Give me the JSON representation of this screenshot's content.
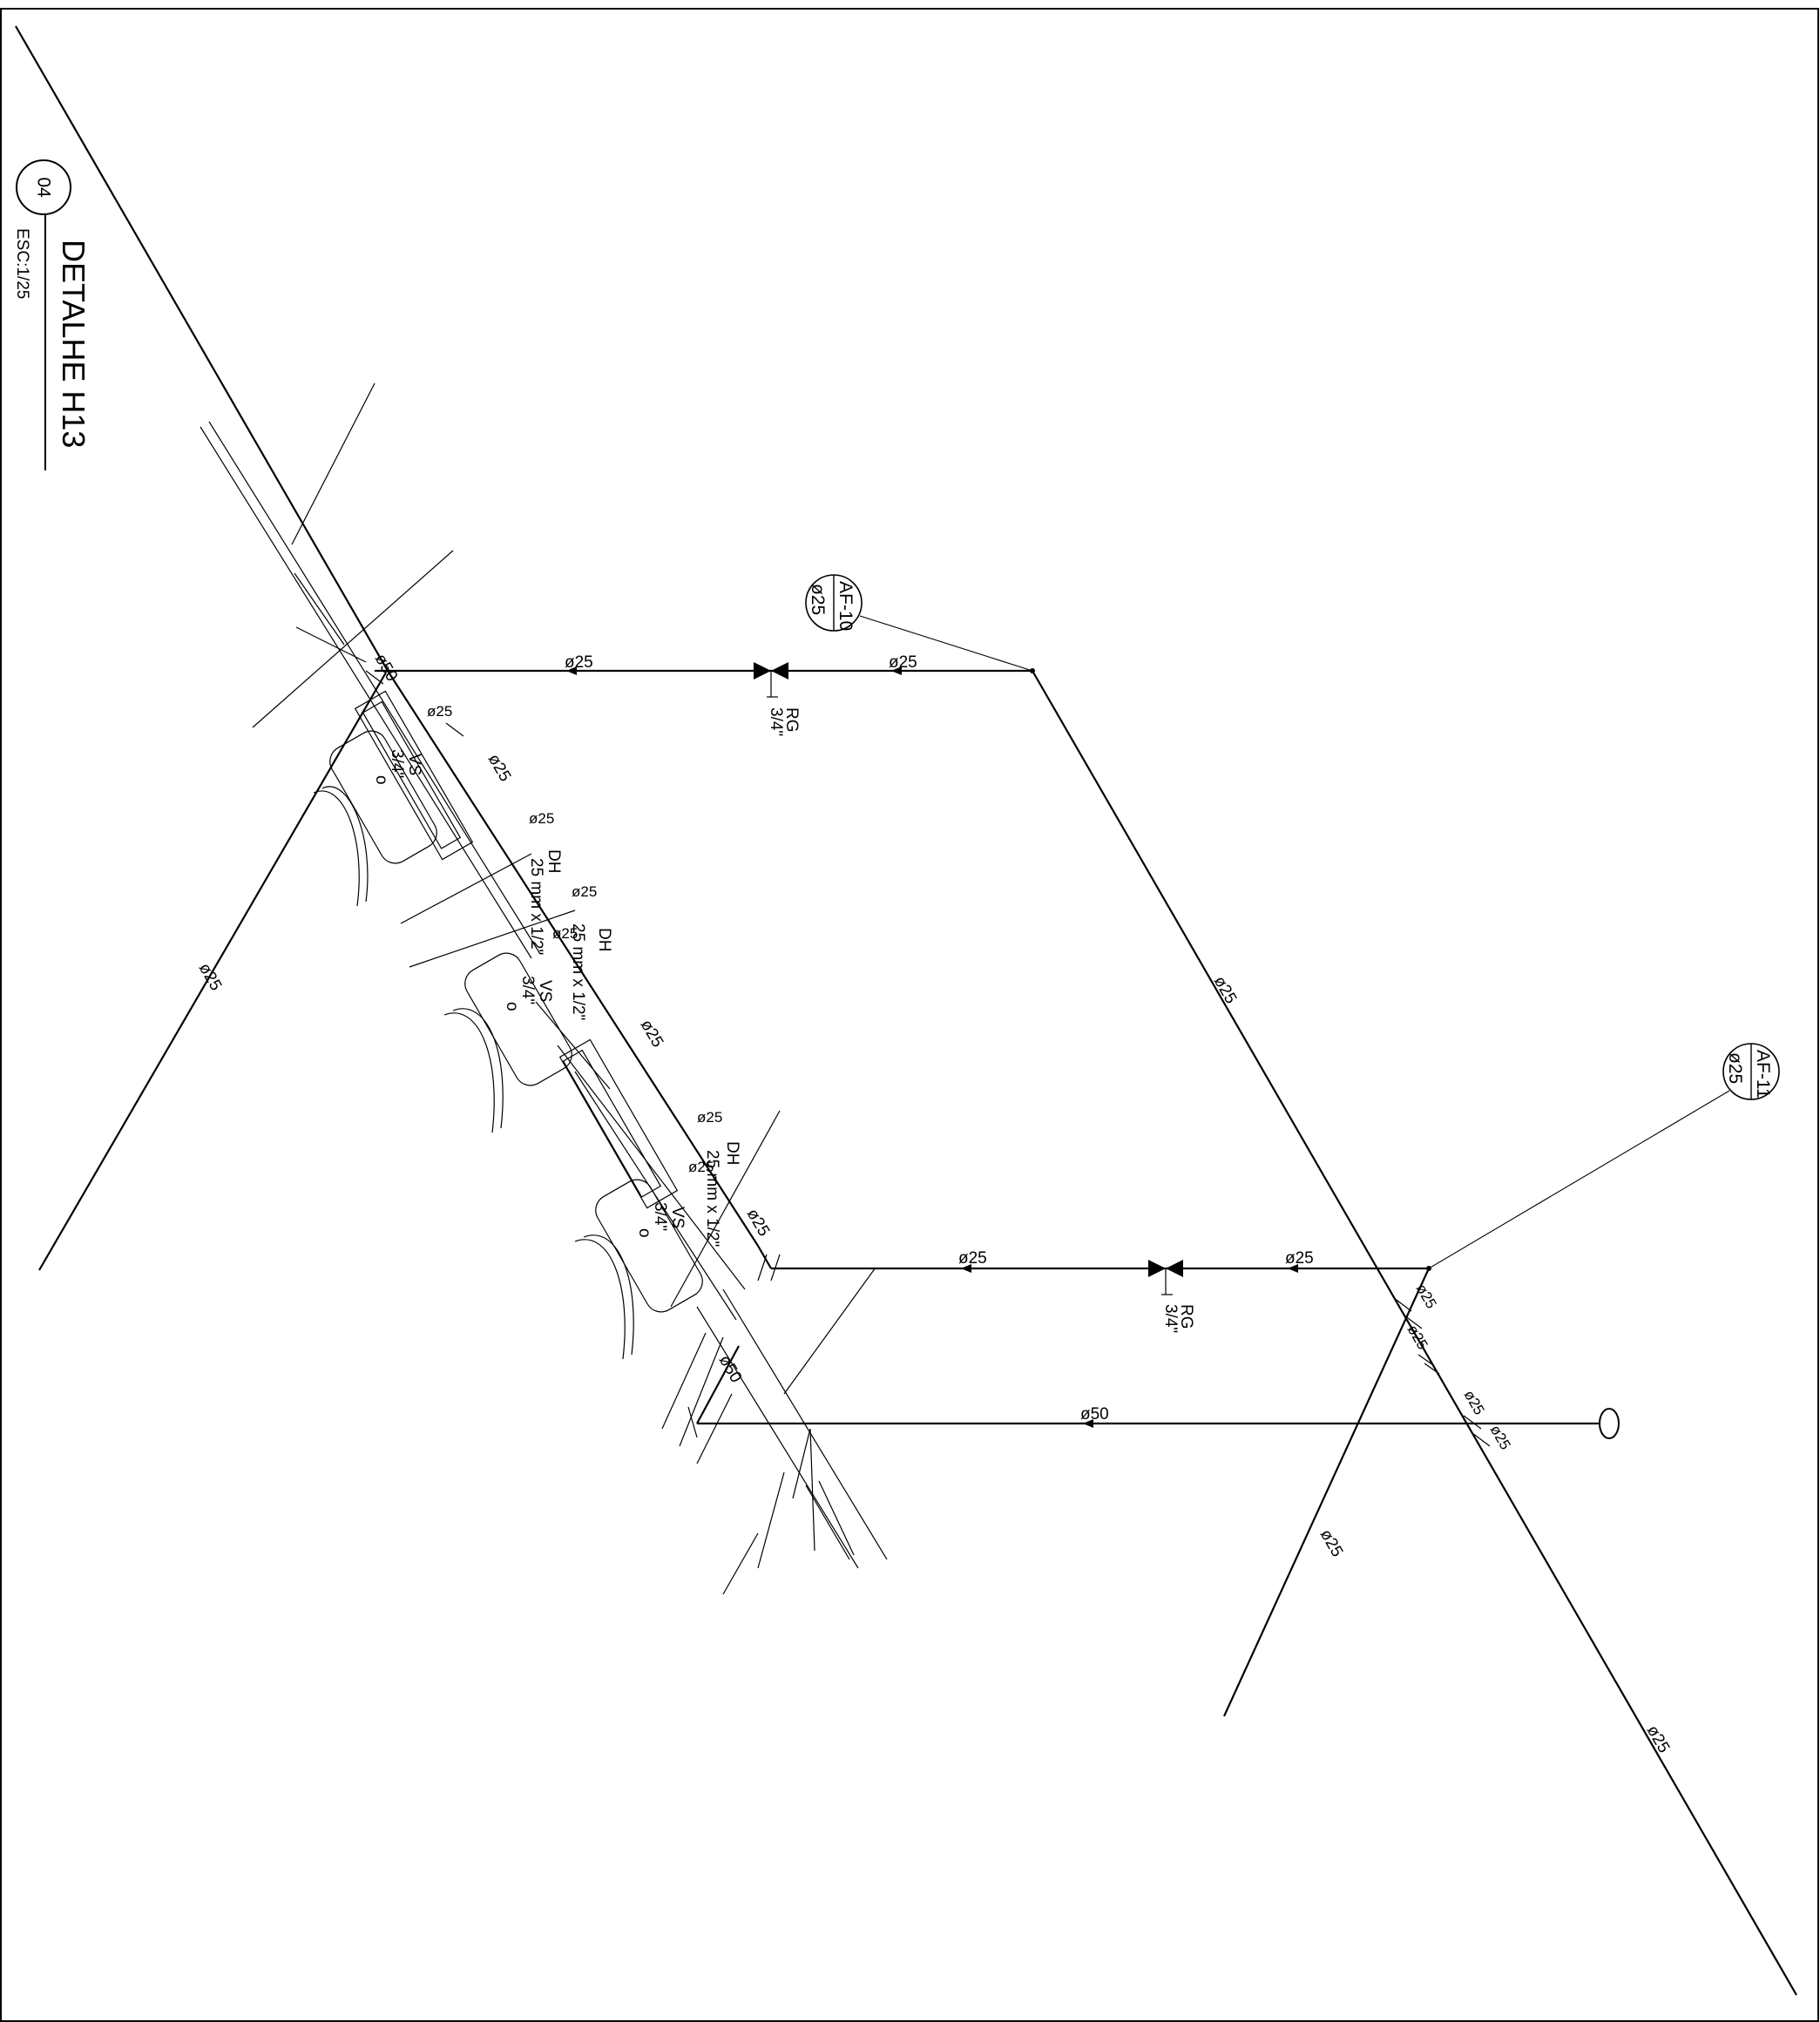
{
  "title_block": {
    "number": "04",
    "title": "DETALHE H13",
    "scale": "ESC:1/25"
  },
  "tags": {
    "af10": {
      "code": "AF-10",
      "diameter": "ø25"
    },
    "af11": {
      "code": "AF-11",
      "diameter": "ø25"
    }
  },
  "valves": {
    "rg_upper": {
      "name": "RG",
      "size": "3/4\""
    },
    "rg_lower": {
      "name": "RG",
      "size": "3/4\""
    }
  },
  "pipe_labels": {
    "d25": "ø25",
    "d50": "ø50",
    "d25_dash": "ø25",
    "vs": "VS",
    "vs_size": "3/4\"",
    "dh": "DH",
    "reducer": "25 mm x 1/2\"",
    "cap": "o",
    "o25": "o25"
  }
}
